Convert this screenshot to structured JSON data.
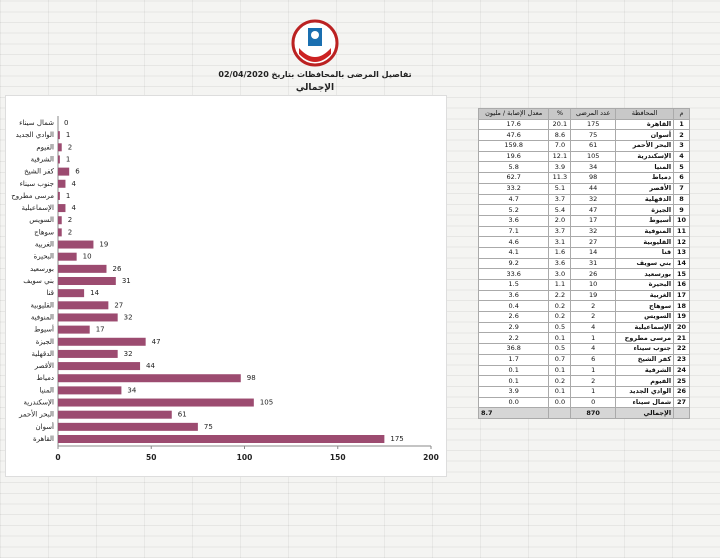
{
  "header": {
    "title": "تفاصيل المرضى بالمحافظات بتاريخ 02/04/2020",
    "subtitle": "الإجمالي"
  },
  "chart_data": {
    "type": "bar",
    "orientation": "horizontal",
    "color": "#9c4b70",
    "categories": [
      "شمال سيناء",
      "الوادي الجديد",
      "الفيوم",
      "الشرقية",
      "كفر الشيخ",
      "جنوب سيناء",
      "مرسى مطروح",
      "الإسماعيلية",
      "السويس",
      "سوهاج",
      "الغربية",
      "البحيرة",
      "بورسعيد",
      "بني سويف",
      "قنا",
      "القليوبية",
      "المنوفية",
      "أسيوط",
      "الجيزة",
      "الدقهلية",
      "الأقصر",
      "دمياط",
      "المنيا",
      "الإسكندرية",
      "البحر الأحمر",
      "أسوان",
      "القاهرة"
    ],
    "values": [
      0,
      1,
      2,
      1,
      6,
      4,
      1,
      4,
      2,
      2,
      19,
      10,
      26,
      31,
      14,
      27,
      32,
      17,
      47,
      32,
      44,
      98,
      34,
      105,
      61,
      75,
      175
    ],
    "xlim": [
      0,
      200
    ],
    "xticks": [
      0,
      50,
      100,
      150,
      200
    ],
    "grid": false
  },
  "table": {
    "header": [
      "م",
      "المحافظة",
      "عدد المرضى",
      "%",
      "معدل الإصابة / مليون"
    ],
    "rows": [
      [
        "1",
        "القاهرة",
        "175",
        "20.1",
        "17.6"
      ],
      [
        "2",
        "أسوان",
        "75",
        "8.6",
        "47.6"
      ],
      [
        "3",
        "البحر الأحمر",
        "61",
        "7.0",
        "159.8"
      ],
      [
        "4",
        "الإسكندرية",
        "105",
        "12.1",
        "19.6"
      ],
      [
        "5",
        "المنيا",
        "34",
        "3.9",
        "5.8"
      ],
      [
        "6",
        "دمياط",
        "98",
        "11.3",
        "62.7"
      ],
      [
        "7",
        "الأقصر",
        "44",
        "5.1",
        "33.2"
      ],
      [
        "8",
        "الدقهلية",
        "32",
        "3.7",
        "4.7"
      ],
      [
        "9",
        "الجيزة",
        "47",
        "5.4",
        "5.2"
      ],
      [
        "10",
        "أسيوط",
        "17",
        "2.0",
        "3.6"
      ],
      [
        "11",
        "المنوفية",
        "32",
        "3.7",
        "7.1"
      ],
      [
        "12",
        "القليوبية",
        "27",
        "3.1",
        "4.6"
      ],
      [
        "13",
        "قنا",
        "14",
        "1.6",
        "4.1"
      ],
      [
        "14",
        "بني سويف",
        "31",
        "3.6",
        "9.2"
      ],
      [
        "15",
        "بورسعيد",
        "26",
        "3.0",
        "33.6"
      ],
      [
        "16",
        "البحيرة",
        "10",
        "1.1",
        "1.5"
      ],
      [
        "17",
        "الغربية",
        "19",
        "2.2",
        "3.6"
      ],
      [
        "18",
        "سوهاج",
        "2",
        "0.2",
        "0.4"
      ],
      [
        "19",
        "السويس",
        "2",
        "0.2",
        "2.6"
      ],
      [
        "20",
        "الإسماعيلية",
        "4",
        "0.5",
        "2.9"
      ],
      [
        "21",
        "مرسى مطروح",
        "1",
        "0.1",
        "2.2"
      ],
      [
        "22",
        "جنوب سيناء",
        "4",
        "0.5",
        "36.8"
      ],
      [
        "23",
        "كفر الشيخ",
        "6",
        "0.7",
        "1.7"
      ],
      [
        "24",
        "الشرقية",
        "1",
        "0.1",
        "0.1"
      ],
      [
        "25",
        "الفيوم",
        "2",
        "0.2",
        "0.1"
      ],
      [
        "26",
        "الوادي الجديد",
        "1",
        "0.1",
        "3.9"
      ],
      [
        "27",
        "شمال سيناء",
        "0",
        "0.0",
        "0.0"
      ]
    ],
    "total": {
      "label": "الإجمالي",
      "count": "870",
      "rate": "8.7"
    }
  }
}
